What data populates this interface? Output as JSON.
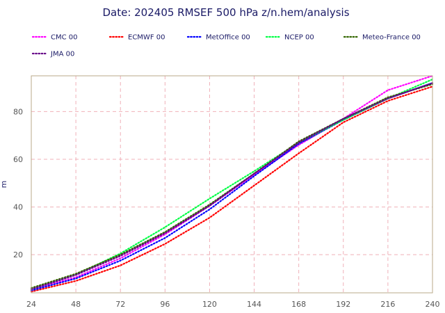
{
  "chart_data": {
    "type": "line",
    "title": "Date: 202405 RMSEF 500 hPa z/n.hem/analysis",
    "xlabel": "",
    "ylabel": "m",
    "x": [
      24,
      48,
      72,
      96,
      120,
      144,
      168,
      192,
      216,
      240
    ],
    "xlim": [
      24,
      240
    ],
    "ylim": [
      4,
      95
    ],
    "x_ticks": [
      24,
      48,
      72,
      96,
      120,
      144,
      168,
      192,
      216,
      240
    ],
    "y_ticks": [
      20,
      40,
      60,
      80
    ],
    "grid": true,
    "legend_position": "top",
    "series": [
      {
        "name": "CMC 00",
        "color": "#ff00ff",
        "values": [
          5.5,
          10.5,
          18.5,
          28.5,
          40.5,
          53.5,
          66.0,
          77.0,
          89.0,
          95.0
        ]
      },
      {
        "name": "ECMWF 00",
        "color": "#ff0000",
        "values": [
          4.5,
          9.0,
          15.5,
          24.5,
          35.5,
          49.0,
          62.5,
          75.5,
          84.5,
          90.5
        ]
      },
      {
        "name": "MetOffice 00",
        "color": "#0000ff",
        "values": [
          5.0,
          10.0,
          17.5,
          27.0,
          39.0,
          53.0,
          66.5,
          76.5,
          85.5,
          92.0
        ]
      },
      {
        "name": "NCEP 00",
        "color": "#00ff44",
        "values": [
          5.5,
          11.5,
          20.5,
          31.5,
          43.5,
          55.0,
          67.0,
          76.5,
          85.5,
          93.5
        ]
      },
      {
        "name": "Meteo-France 00",
        "color": "#336600",
        "values": [
          6.0,
          12.0,
          20.0,
          29.5,
          41.0,
          54.0,
          67.5,
          77.0,
          86.0,
          91.5
        ]
      },
      {
        "name": "JMA 00",
        "color": "#660088",
        "values": [
          5.5,
          11.5,
          19.5,
          29.0,
          40.5,
          54.0,
          67.0,
          77.0,
          85.5,
          92.0
        ]
      }
    ]
  }
}
